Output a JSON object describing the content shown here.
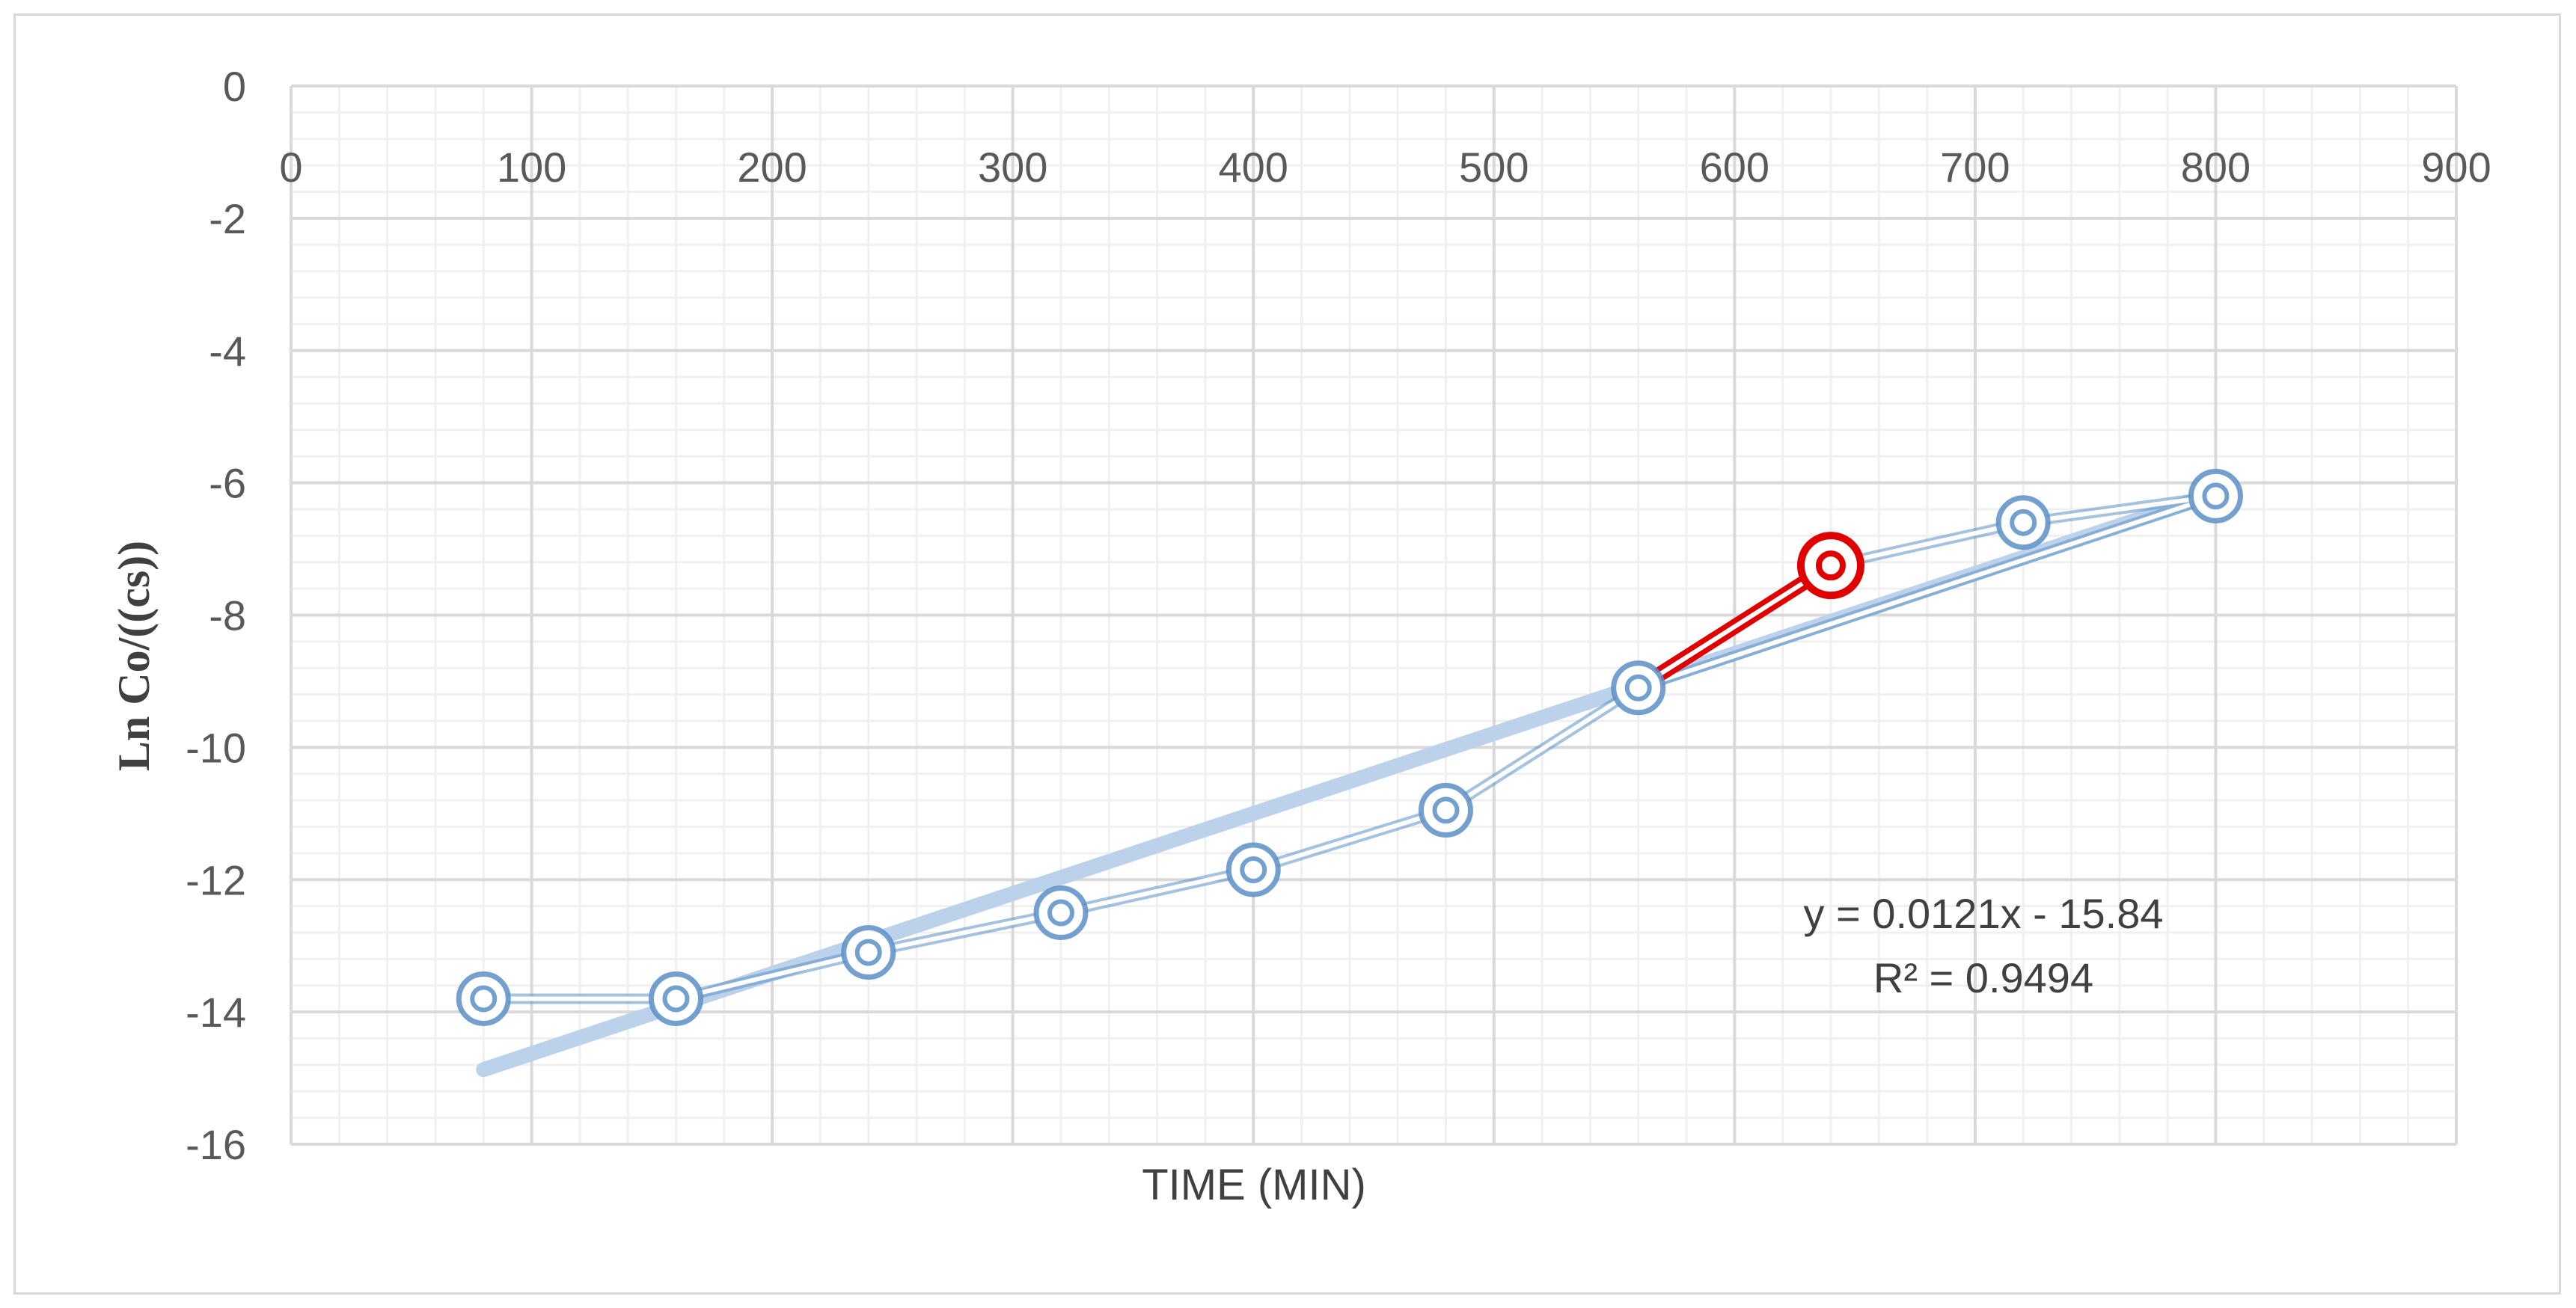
{
  "chart_data": {
    "type": "scatter",
    "title": "",
    "xlabel": "TIME (MIN)",
    "ylabel": "Ln Co/((cs))",
    "xlim": [
      0,
      900
    ],
    "ylim": [
      -16,
      0
    ],
    "x_ticks": [
      "0",
      "100",
      "200",
      "300",
      "400",
      "500",
      "600",
      "700",
      "800",
      "900"
    ],
    "y_ticks": [
      "0",
      "-2",
      "-4",
      "-6",
      "-8",
      "-10",
      "-12",
      "-14",
      "-16"
    ],
    "grid": true,
    "series": [
      {
        "x": [
          80,
          160,
          240,
          320,
          400,
          480,
          560,
          640,
          720,
          800
        ],
        "y": [
          -13.8,
          -13.8,
          -13.1,
          -12.5,
          -11.85,
          -10.95,
          -9.1,
          -7.25,
          -6.6,
          -6.2
        ],
        "line_order": [
          0,
          1,
          2,
          3,
          4,
          5,
          6,
          7,
          8,
          9,
          6
        ],
        "color": "#5b8fc7",
        "highlight": {
          "from_index": 6,
          "to_index": 7,
          "color": "#e00000"
        }
      }
    ],
    "trendline": {
      "type": "linear",
      "slope": 0.0121,
      "intercept": -15.84,
      "x_range": [
        80,
        800
      ],
      "color": "#bcd2ea",
      "equation": "y = 0.0121x - 15.84",
      "r_squared": "R² = 0.9494"
    }
  }
}
